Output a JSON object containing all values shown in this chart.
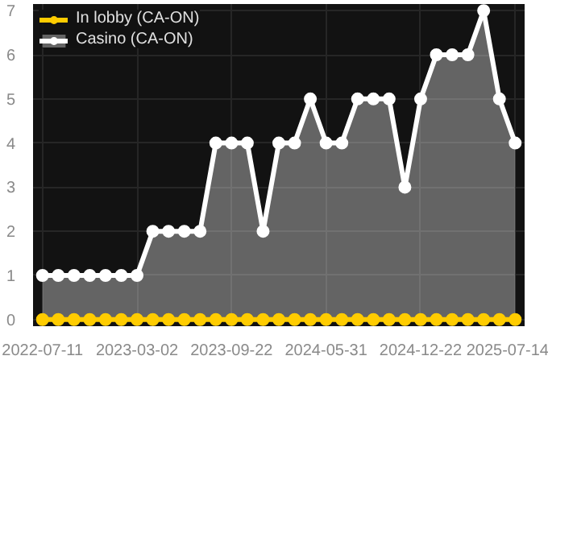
{
  "chart_data": {
    "type": "area",
    "categories": [
      "2022-07-11",
      null,
      null,
      null,
      null,
      null,
      "2023-03-02",
      null,
      null,
      null,
      null,
      null,
      "2023-09-22",
      null,
      null,
      null,
      null,
      null,
      "2024-05-31",
      null,
      null,
      null,
      null,
      null,
      "2024-12-22",
      null,
      null,
      null,
      null,
      null,
      "2025-07-14"
    ],
    "series": [
      {
        "name": "In lobby (CA-ON)",
        "color": "#ffcc00",
        "type": "line",
        "values": [
          0,
          0,
          0,
          0,
          0,
          0,
          0,
          0,
          0,
          0,
          0,
          0,
          0,
          0,
          0,
          0,
          0,
          0,
          0,
          0,
          0,
          0,
          0,
          0,
          0,
          0,
          0,
          0,
          0,
          0,
          0
        ]
      },
      {
        "name": "Casino (CA-ON)",
        "color": "#ffffff",
        "values": [
          1,
          1,
          1,
          1,
          1,
          1,
          1,
          2,
          2,
          2,
          2,
          4,
          4,
          4,
          2,
          4,
          4,
          5,
          4,
          4,
          5,
          5,
          5,
          3,
          5,
          6,
          6,
          6,
          7,
          5,
          4
        ]
      }
    ],
    "ylim": [
      -0.15,
      7.15
    ],
    "yticks": [
      0,
      1,
      2,
      3,
      4,
      5,
      6,
      7
    ],
    "grid": true,
    "legend": "top left",
    "marker": "circle",
    "line_style": "solid"
  }
}
